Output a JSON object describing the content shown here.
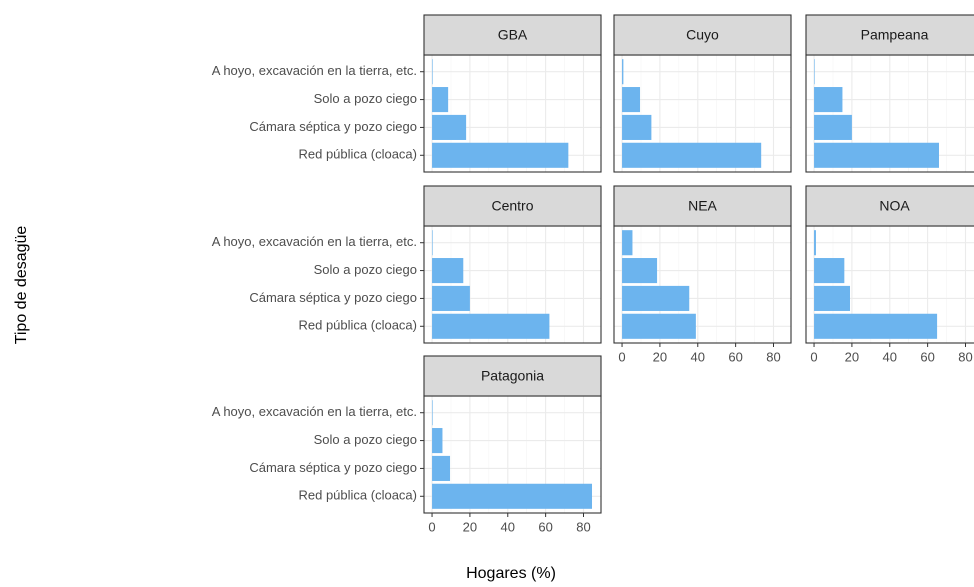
{
  "chart_data": {
    "type": "bar",
    "orientation": "horizontal",
    "x_label": "Hogares (%)",
    "y_label": "Tipo de desagüe",
    "categories": [
      "A hoyo, excavación en la tierra, etc.",
      "Solo a pozo ciego",
      "Cámara séptica y pozo ciego",
      "Red pública (cloaca)"
    ],
    "xlim": [
      -4.25,
      89.25
    ],
    "xticks": [
      0,
      20,
      40,
      60,
      80
    ],
    "color": "#6cb4ee",
    "grid": true,
    "facets": [
      {
        "title": "GBA",
        "values": [
          0.3,
          8.5,
          18,
          72
        ]
      },
      {
        "title": "Cuyo",
        "values": [
          0.7,
          9.5,
          15.5,
          73.5
        ]
      },
      {
        "title": "Pampeana",
        "values": [
          0.3,
          15,
          20,
          66
        ]
      },
      {
        "title": "Centro",
        "values": [
          0.3,
          16.5,
          20,
          62
        ]
      },
      {
        "title": "NEA",
        "values": [
          5.5,
          18.5,
          35.5,
          39
        ]
      },
      {
        "title": "NOA",
        "values": [
          1,
          16,
          19,
          65
        ]
      },
      {
        "title": "Patagonia",
        "values": [
          0.3,
          5.5,
          9.5,
          84.5
        ]
      }
    ]
  }
}
